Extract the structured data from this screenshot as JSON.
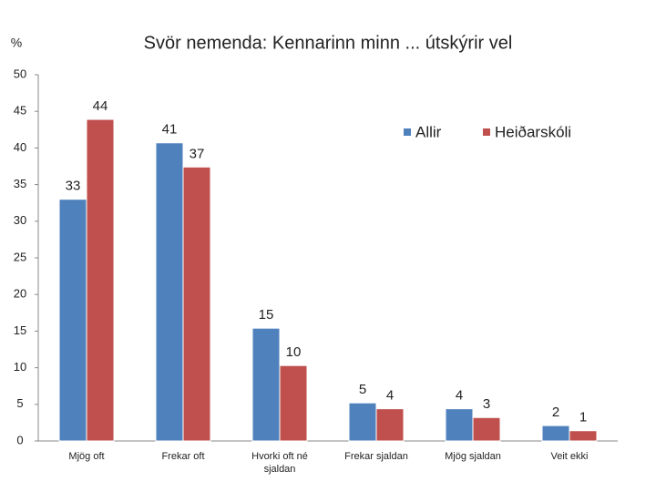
{
  "chart_data": {
    "type": "bar",
    "title": "Svör nemenda: Kennarinn minn ... útskýrir vel",
    "y_label": "%",
    "categories": [
      "Mjög oft",
      "Frekar oft",
      "Hvorki oft né sjaldan",
      "Frekar sjaldan",
      "Mjög sjaldan",
      "Veit ekki"
    ],
    "series": [
      {
        "name": "Allir",
        "color": "#4f81bd",
        "values": [
          33,
          40.7,
          15.4,
          5.2,
          4.4,
          2.1
        ],
        "value_labels": [
          "33",
          "41",
          "15",
          "5",
          "4",
          "2"
        ]
      },
      {
        "name": "Heiðarskóli",
        "color": "#c0504d",
        "values": [
          43.9,
          37.4,
          10.3,
          4.4,
          3.2,
          1.4
        ],
        "value_labels": [
          "44",
          "37",
          "10",
          "4",
          "3",
          "1"
        ]
      }
    ],
    "ylim": [
      0,
      50
    ],
    "yticks": [
      0,
      5,
      10,
      15,
      20,
      25,
      30,
      35,
      40,
      45,
      50
    ],
    "legend": "top-right",
    "grid": false
  }
}
